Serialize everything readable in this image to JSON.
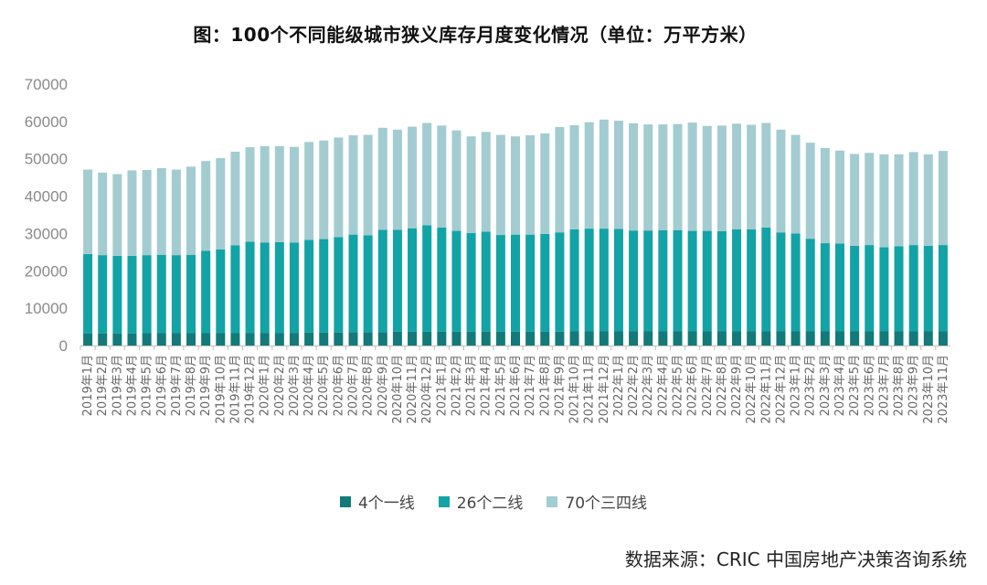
{
  "title": "图：100个不同能级城市狭义库存月度变化情况（单位：万平方米）",
  "source": "数据来源：CRIC 中国房地产决策咨询系统",
  "colors": {
    "s1": "#127a78",
    "s2": "#12a3a6",
    "s3": "#a3ccd1",
    "axis": "#bfbfbf"
  },
  "chart_data": {
    "type": "bar",
    "stacked": true,
    "ylim": [
      0,
      70000
    ],
    "yticks": [
      "70000",
      "60000",
      "50000",
      "40000",
      "30000",
      "20000",
      "10000",
      "0"
    ],
    "categories": [
      "2019年1月",
      "2019年2月",
      "2019年3月",
      "2019年4月",
      "2019年5月",
      "2019年6月",
      "2019年7月",
      "2019年8月",
      "2019年9月",
      "2019年10月",
      "2019年11月",
      "2019年12月",
      "2020年1月",
      "2020年2月",
      "2020年3月",
      "2020年4月",
      "2020年5月",
      "2020年6月",
      "2020年7月",
      "2020年8月",
      "2020年9月",
      "2020年10月",
      "2020年11月",
      "2020年12月",
      "2021年1月",
      "2021年2月",
      "2021年3月",
      "2021年4月",
      "2021年5月",
      "2021年6月",
      "2021年7月",
      "2021年8月",
      "2021年9月",
      "2021年10月",
      "2021年11月",
      "2021年12月",
      "2022年1月",
      "2022年2月",
      "2022年3月",
      "2022年4月",
      "2022年5月",
      "2022年6月",
      "2022年7月",
      "2022年8月",
      "2022年9月",
      "2022年10月",
      "2022年11月",
      "2022年12月",
      "2023年1月",
      "2023年2月",
      "2023年3月",
      "2023年4月",
      "2023年5月",
      "2023年6月",
      "2023年7月",
      "2023年8月",
      "2023年9月",
      "2023年10月",
      "2023年11月"
    ],
    "series": [
      {
        "name": "4个一线",
        "values": [
          3200,
          3200,
          3200,
          3200,
          3300,
          3300,
          3300,
          3300,
          3300,
          3300,
          3300,
          3300,
          3400,
          3400,
          3400,
          3500,
          3500,
          3500,
          3600,
          3600,
          3600,
          3700,
          3700,
          3700,
          3700,
          3700,
          3700,
          3700,
          3700,
          3700,
          3700,
          3700,
          3700,
          3800,
          3800,
          3800,
          3800,
          3800,
          3800,
          3800,
          3800,
          3800,
          3800,
          3800,
          3800,
          3800,
          3800,
          3800,
          3800,
          3800,
          3800,
          3800,
          3800,
          3800,
          3800,
          3800,
          3800,
          3800,
          3800
        ]
      },
      {
        "name": "26个二线",
        "values": [
          21300,
          21000,
          20800,
          20800,
          20900,
          21000,
          20900,
          21000,
          22100,
          22400,
          23500,
          24500,
          24200,
          24300,
          24200,
          24800,
          25000,
          25500,
          26100,
          25900,
          27400,
          27300,
          27700,
          28500,
          27900,
          27000,
          26400,
          26800,
          25900,
          26000,
          26000,
          26200,
          26600,
          27300,
          27500,
          27500,
          27400,
          27000,
          27000,
          27100,
          27100,
          26900,
          26900,
          26800,
          27300,
          27300,
          27800,
          26500,
          26200,
          24800,
          23600,
          23500,
          22900,
          23100,
          22500,
          22800,
          23100,
          22900,
          23100
        ]
      },
      {
        "name": "70个三四线",
        "values": [
          22600,
          22100,
          21900,
          22900,
          22800,
          23200,
          22900,
          23600,
          24000,
          24500,
          25100,
          25300,
          25800,
          25700,
          25600,
          26200,
          26400,
          26700,
          26600,
          26900,
          27300,
          26800,
          27200,
          27400,
          27300,
          26900,
          25900,
          26700,
          26800,
          26300,
          26600,
          26900,
          28200,
          27900,
          28500,
          29200,
          29000,
          28700,
          28400,
          28300,
          28400,
          29000,
          28100,
          28300,
          28300,
          28000,
          28000,
          27500,
          26400,
          25700,
          25500,
          24900,
          24600,
          24700,
          24900,
          24600,
          24900,
          24500,
          25200
        ]
      }
    ]
  },
  "legend": [
    {
      "label": "4个一线",
      "key": "s1"
    },
    {
      "label": "26个二线",
      "key": "s2"
    },
    {
      "label": "70个三四线",
      "key": "s3"
    }
  ]
}
